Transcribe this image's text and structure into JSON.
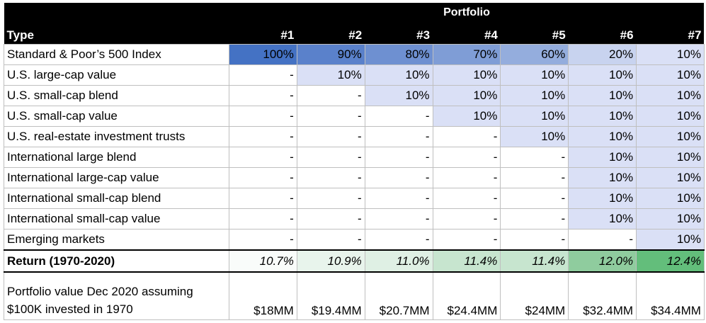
{
  "table": {
    "group_header": "Portfolio",
    "type_header": "Type",
    "portfolio_labels": [
      "#1",
      "#2",
      "#3",
      "#4",
      "#5",
      "#6",
      "#7"
    ],
    "rows": [
      {
        "label": "Standard & Poor’s 500 Index",
        "values": [
          "100%",
          "90%",
          "80%",
          "70%",
          "60%",
          "20%",
          "10%"
        ]
      },
      {
        "label": "U.S. large-cap value",
        "values": [
          "-",
          "10%",
          "10%",
          "10%",
          "10%",
          "10%",
          "10%"
        ]
      },
      {
        "label": "U.S. small-cap blend",
        "values": [
          "-",
          "-",
          "10%",
          "10%",
          "10%",
          "10%",
          "10%"
        ]
      },
      {
        "label": "U.S. small-cap value",
        "values": [
          "-",
          "-",
          "-",
          "10%",
          "10%",
          "10%",
          "10%"
        ]
      },
      {
        "label": "U.S. real-estate investment trusts",
        "values": [
          "-",
          "-",
          "-",
          "-",
          "10%",
          "10%",
          "10%"
        ]
      },
      {
        "label": "International large blend",
        "values": [
          "-",
          "-",
          "-",
          "-",
          "-",
          "10%",
          "10%"
        ]
      },
      {
        "label": "International large-cap value",
        "values": [
          "-",
          "-",
          "-",
          "-",
          "-",
          "10%",
          "10%"
        ]
      },
      {
        "label": "International small-cap blend",
        "values": [
          "-",
          "-",
          "-",
          "-",
          "-",
          "10%",
          "10%"
        ]
      },
      {
        "label": "International small-cap value",
        "values": [
          "-",
          "-",
          "-",
          "-",
          "-",
          "10%",
          "10%"
        ]
      },
      {
        "label": "Emerging markets",
        "values": [
          "-",
          "-",
          "-",
          "-",
          "-",
          "-",
          "10%"
        ]
      }
    ],
    "return_row": {
      "label": "Return (1970-2020)",
      "values": [
        "10.7%",
        "10.9%",
        "11.0%",
        "11.4%",
        "11.4%",
        "12.0%",
        "12.4%"
      ]
    },
    "value_row": {
      "label": "Portfolio value Dec 2020 assuming $100K invested in 1970",
      "values": [
        "$18MM",
        "$19.4MM",
        "$20.7MM",
        "$24.4MM",
        "$24MM",
        "$32.4MM",
        "$34.4MM"
      ]
    }
  },
  "colors": {
    "sp500_scale": [
      "#4472c4",
      "#5a81cb",
      "#6e90d1",
      "#7f9dd6",
      "#94addd",
      "#c8d3ef",
      "#dae0f6"
    ],
    "allocation_fill": "#dae0f6",
    "return_scale": [
      "#f9fcfa",
      "#e8f4ec",
      "#dff0e4",
      "#c7e5cf",
      "#c7e5cf",
      "#8fcc9e",
      "#63be7b"
    ]
  }
}
